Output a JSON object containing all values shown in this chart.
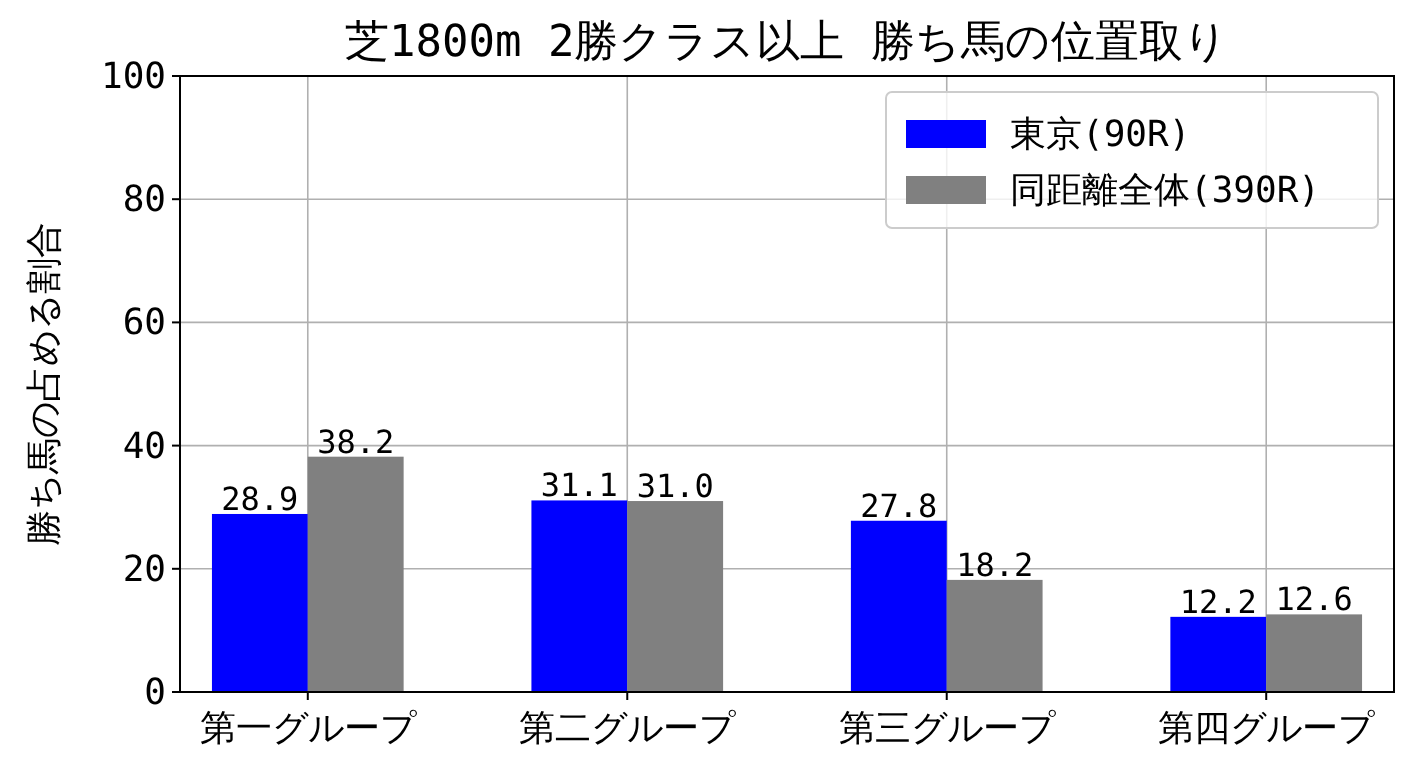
{
  "chart_data": {
    "type": "bar",
    "title": "芝1800m 2勝クラス以上 勝ち馬の位置取り",
    "ylabel": "勝ち馬の占める割合",
    "categories": [
      "第一グループ",
      "第二グループ",
      "第三グループ",
      "第四グループ"
    ],
    "series": [
      {
        "name": "東京(90R)",
        "color": "#0000ff",
        "values": [
          28.9,
          31.1,
          27.8,
          12.2
        ],
        "value_labels": [
          "28.9",
          "31.1",
          "27.8",
          "12.2"
        ]
      },
      {
        "name": "同距離全体(390R)",
        "color": "#808080",
        "values": [
          38.2,
          31.0,
          18.2,
          12.6
        ],
        "value_labels": [
          "38.2",
          "31.0",
          "18.2",
          "12.6"
        ]
      }
    ],
    "ylim": [
      0,
      100
    ],
    "yticks": [
      0,
      20,
      40,
      60,
      80,
      100
    ],
    "grid": true,
    "legend": "top right"
  }
}
